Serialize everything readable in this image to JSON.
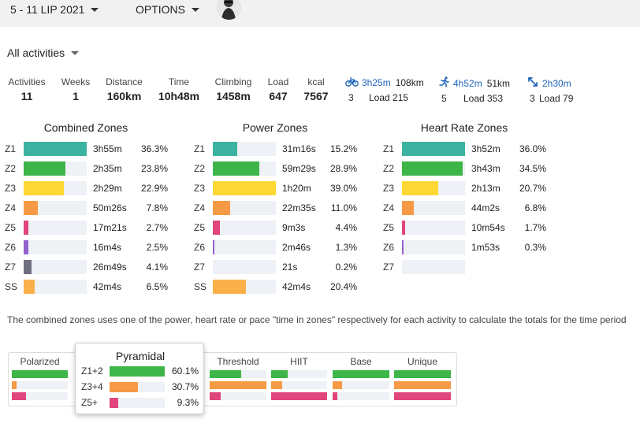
{
  "header": {
    "date_range": "5 - 11 LIP 2021",
    "options_label": "OPTIONS"
  },
  "filter": {
    "label": "All activities"
  },
  "stats": [
    {
      "label": "Activities",
      "value": "11"
    },
    {
      "label": "Weeks",
      "value": "1"
    },
    {
      "label": "Distance",
      "value": "160km"
    },
    {
      "label": "Time",
      "value": "10h48m"
    },
    {
      "label": "Climbing",
      "value": "1458m"
    },
    {
      "label": "Load",
      "value": "647"
    },
    {
      "label": "kcal",
      "value": "7567"
    }
  ],
  "sports": [
    {
      "icon": "bike-icon",
      "time": "3h25m",
      "distance": "108km",
      "count": "3",
      "load": "Load 215"
    },
    {
      "icon": "run-icon",
      "time": "4h52m",
      "distance": "51km",
      "count": "5",
      "load": "Load 353"
    },
    {
      "icon": "other-activity-icon",
      "time": "2h30m",
      "distance": "",
      "count": "3",
      "load": "Load 79"
    }
  ],
  "colors": {
    "z1": "#3cb3a0",
    "z2": "#3db548",
    "z3": "#fdd835",
    "z4": "#f79a46",
    "z5": "#e0457b",
    "z6": "#9461ce",
    "z7": "#6f6f80",
    "ss": "#fbb04a",
    "track": "#eef1f5",
    "link": "#1f63b8"
  },
  "zones": {
    "combined": {
      "title": "Combined Zones",
      "rows": [
        {
          "zone": "Z1",
          "time": "3h55m",
          "percent": "36.3%",
          "fraction": 1.0,
          "color": "#3cb3a0"
        },
        {
          "zone": "Z2",
          "time": "2h35m",
          "percent": "23.8%",
          "fraction": 0.66,
          "color": "#3db548"
        },
        {
          "zone": "Z3",
          "time": "2h29m",
          "percent": "22.9%",
          "fraction": 0.64,
          "color": "#fdd835"
        },
        {
          "zone": "Z4",
          "time": "50m26s",
          "percent": "7.8%",
          "fraction": 0.22,
          "color": "#f79a46"
        },
        {
          "zone": "Z5",
          "time": "17m21s",
          "percent": "2.7%",
          "fraction": 0.08,
          "color": "#e0457b"
        },
        {
          "zone": "Z6",
          "time": "16m4s",
          "percent": "2.5%",
          "fraction": 0.07,
          "color": "#9461ce"
        },
        {
          "zone": "Z7",
          "time": "26m49s",
          "percent": "4.1%",
          "fraction": 0.12,
          "color": "#6f6f80"
        },
        {
          "zone": "SS",
          "time": "42m4s",
          "percent": "6.5%",
          "fraction": 0.18,
          "color": "#fbb04a"
        }
      ]
    },
    "power": {
      "title": "Power Zones",
      "rows": [
        {
          "zone": "Z1",
          "time": "31m16s",
          "percent": "15.2%",
          "fraction": 0.39,
          "color": "#3cb3a0"
        },
        {
          "zone": "Z2",
          "time": "59m29s",
          "percent": "28.9%",
          "fraction": 0.74,
          "color": "#3db548"
        },
        {
          "zone": "Z3",
          "time": "1h20m",
          "percent": "39.0%",
          "fraction": 1.0,
          "color": "#fdd835"
        },
        {
          "zone": "Z4",
          "time": "22m35s",
          "percent": "11.0%",
          "fraction": 0.28,
          "color": "#f79a46"
        },
        {
          "zone": "Z5",
          "time": "9m3s",
          "percent": "4.4%",
          "fraction": 0.11,
          "color": "#e0457b"
        },
        {
          "zone": "Z6",
          "time": "2m46s",
          "percent": "1.3%",
          "fraction": 0.03,
          "color": "#9461ce"
        },
        {
          "zone": "Z7",
          "time": "21s",
          "percent": "0.2%",
          "fraction": 0.0,
          "color": "#6f6f80"
        },
        {
          "zone": "SS",
          "time": "42m4s",
          "percent": "20.4%",
          "fraction": 0.52,
          "color": "#fbb04a"
        }
      ]
    },
    "hr": {
      "title": "Heart Rate Zones",
      "rows": [
        {
          "zone": "Z1",
          "time": "3h52m",
          "percent": "36.0%",
          "fraction": 1.0,
          "color": "#3cb3a0"
        },
        {
          "zone": "Z2",
          "time": "3h43m",
          "percent": "34.5%",
          "fraction": 0.96,
          "color": "#3db548"
        },
        {
          "zone": "Z3",
          "time": "2h13m",
          "percent": "20.7%",
          "fraction": 0.57,
          "color": "#fdd835"
        },
        {
          "zone": "Z4",
          "time": "44m2s",
          "percent": "6.8%",
          "fraction": 0.19,
          "color": "#f79a46"
        },
        {
          "zone": "Z5",
          "time": "10m54s",
          "percent": "1.7%",
          "fraction": 0.05,
          "color": "#e0457b"
        },
        {
          "zone": "Z6",
          "time": "1m53s",
          "percent": "0.3%",
          "fraction": 0.01,
          "color": "#9461ce"
        },
        {
          "zone": "Z7",
          "time": "",
          "percent": "",
          "fraction": 0.0,
          "color": "#6f6f80"
        }
      ]
    }
  },
  "note": "The combined zones uses one of the power, heart rate or pace \"time in zones\" respectively for each activity to calculate the totals for the time period",
  "distribution": {
    "models": [
      {
        "name": "Polarized",
        "bars": [
          1.0,
          0.08,
          0.25
        ]
      },
      {
        "name": "Threshold",
        "bars": [
          0.55,
          1.0,
          0.2
        ]
      },
      {
        "name": "HIIT",
        "bars": [
          0.3,
          0.2,
          1.0
        ]
      },
      {
        "name": "Base",
        "bars": [
          1.0,
          0.17,
          0.08
        ]
      },
      {
        "name": "Unique",
        "bars": [
          1.0,
          1.0,
          1.0
        ]
      }
    ],
    "popup": {
      "title": "Pyramidal",
      "rows": [
        {
          "zone": "Z1+2",
          "percent": "60.1%",
          "fraction": 1.0,
          "color": "#3db548"
        },
        {
          "zone": "Z3+4",
          "percent": "30.7%",
          "fraction": 0.51,
          "color": "#f79a46"
        },
        {
          "zone": "Z5+",
          "percent": "9.3%",
          "fraction": 0.15,
          "color": "#e0457b"
        }
      ]
    }
  }
}
